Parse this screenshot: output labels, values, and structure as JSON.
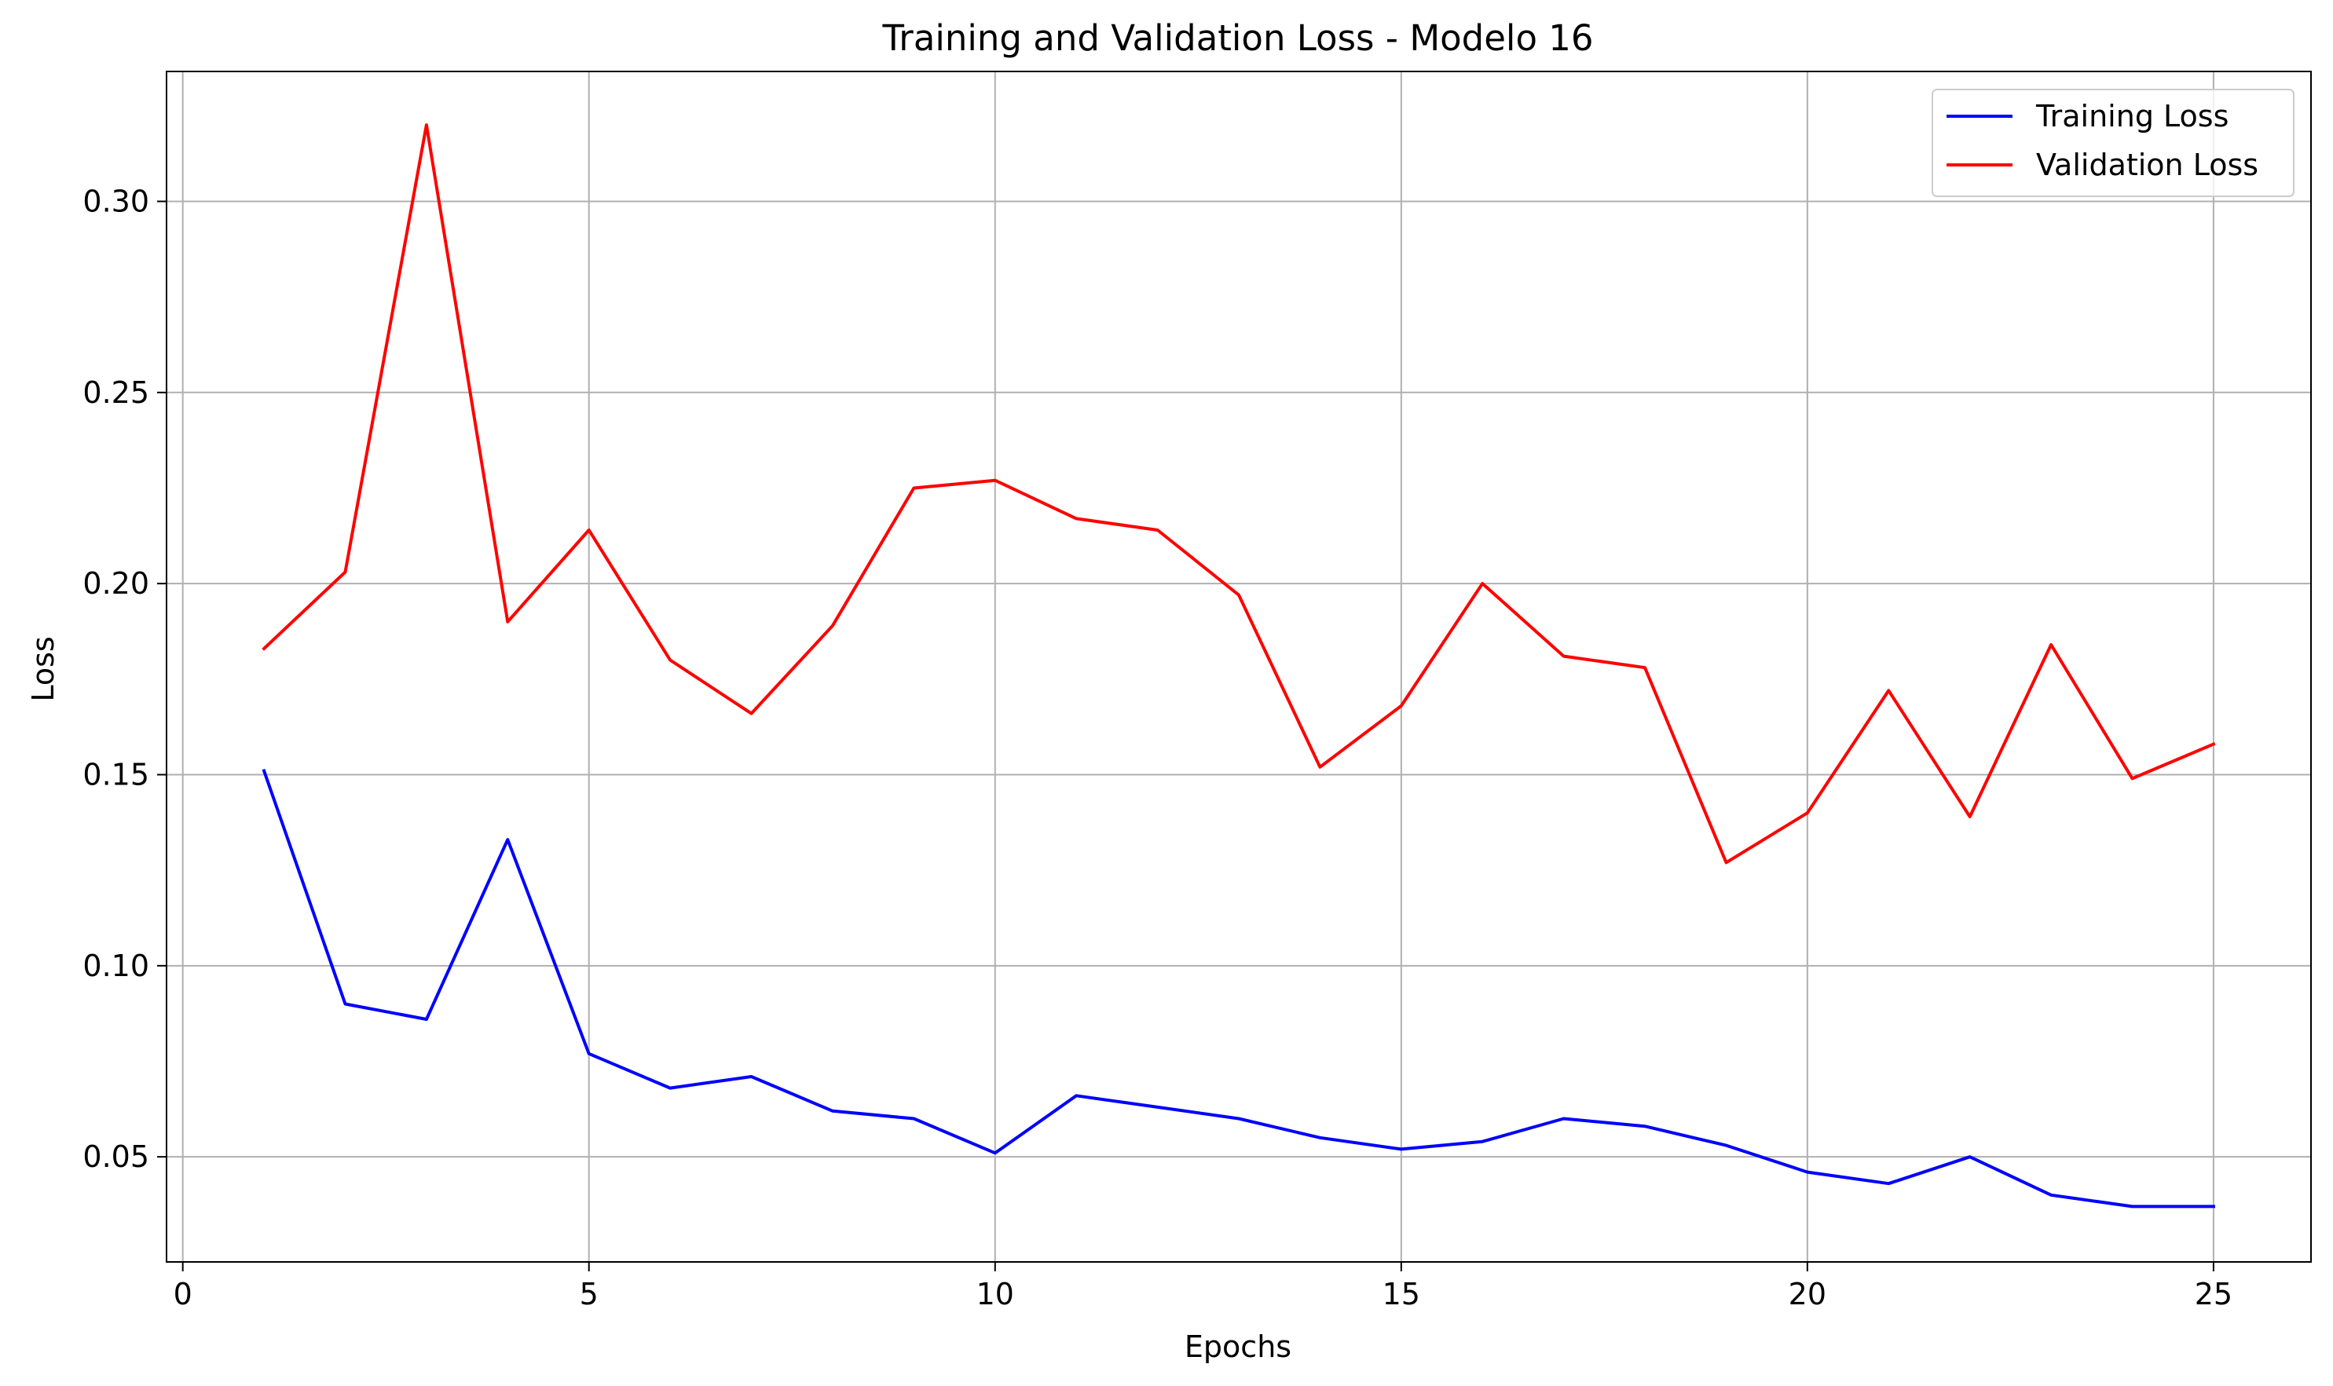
{
  "chart_data": {
    "type": "line",
    "title": "Training and Validation Loss - Modelo 16",
    "xlabel": "Epochs",
    "ylabel": "Loss",
    "xlim": [
      -0.2,
      26.2
    ],
    "ylim": [
      0.0225,
      0.334
    ],
    "xticks": [
      0,
      5,
      10,
      15,
      20,
      25
    ],
    "xtick_labels": [
      "0",
      "5",
      "10",
      "15",
      "20",
      "25"
    ],
    "yticks": [
      0.05,
      0.1,
      0.15,
      0.2,
      0.25,
      0.3
    ],
    "ytick_labels": [
      "0.05",
      "0.10",
      "0.15",
      "0.20",
      "0.25",
      "0.30"
    ],
    "grid": true,
    "legend_position": "top-right",
    "x": [
      1,
      2,
      3,
      4,
      5,
      6,
      7,
      8,
      9,
      10,
      11,
      12,
      13,
      14,
      15,
      16,
      17,
      18,
      19,
      20,
      21,
      22,
      23,
      24,
      25
    ],
    "series": [
      {
        "name": "Training Loss",
        "color": "#0000ff",
        "values": [
          0.151,
          0.09,
          0.086,
          0.133,
          0.077,
          0.068,
          0.071,
          0.062,
          0.06,
          0.051,
          0.066,
          0.063,
          0.06,
          0.055,
          0.052,
          0.054,
          0.06,
          0.058,
          0.053,
          0.046,
          0.043,
          0.05,
          0.04,
          0.037,
          0.037
        ]
      },
      {
        "name": "Validation Loss",
        "color": "#ff0000",
        "values": [
          0.183,
          0.203,
          0.32,
          0.19,
          0.214,
          0.18,
          0.166,
          0.189,
          0.225,
          0.227,
          0.217,
          0.214,
          0.197,
          0.152,
          0.168,
          0.2,
          0.181,
          0.178,
          0.127,
          0.14,
          0.172,
          0.139,
          0.184,
          0.149,
          0.158
        ]
      }
    ]
  }
}
